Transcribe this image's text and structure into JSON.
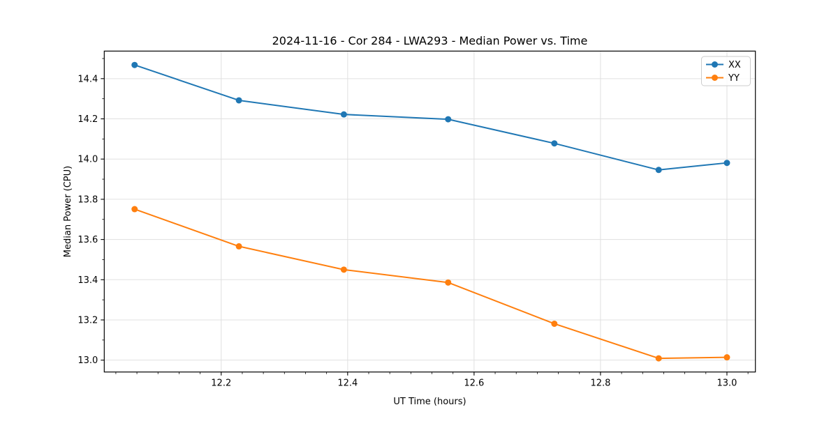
{
  "figure": {
    "title": "2024-11-16 - Cor 284 - LWA293 - Median Power vs. Time"
  },
  "chart_data": {
    "type": "line",
    "title": "2024-11-16 - Cor 284 - LWA293 - Median Power vs. Time",
    "xlabel": "UT Time (hours)",
    "ylabel": "Median Power (CPU)",
    "x": [
      12.063,
      12.228,
      12.394,
      12.559,
      12.727,
      12.892,
      13.0
    ],
    "series": [
      {
        "name": "XX",
        "color": "#1f77b4",
        "values": [
          14.468,
          14.292,
          14.222,
          14.198,
          14.078,
          13.946,
          13.981
        ]
      },
      {
        "name": "YY",
        "color": "#ff7f0e",
        "values": [
          13.751,
          13.566,
          13.45,
          13.386,
          13.181,
          13.009,
          13.014
        ]
      }
    ],
    "xticks": [
      12.2,
      12.4,
      12.6,
      12.8,
      13.0
    ],
    "yticks": [
      13.0,
      13.2,
      13.4,
      13.6,
      13.8,
      14.0,
      14.2,
      14.4
    ],
    "xlim": [
      12.015,
      13.045
    ],
    "ylim": [
      12.941,
      14.537
    ],
    "x_minor_divisions": 6,
    "y_minor_divisions": 2,
    "tick_decimals": 1,
    "grid": true,
    "marker": "circle",
    "legend_position": "upper right",
    "colors": {
      "grid": "#e0e0e0",
      "axis": "#000000",
      "background": "#ffffff"
    }
  }
}
